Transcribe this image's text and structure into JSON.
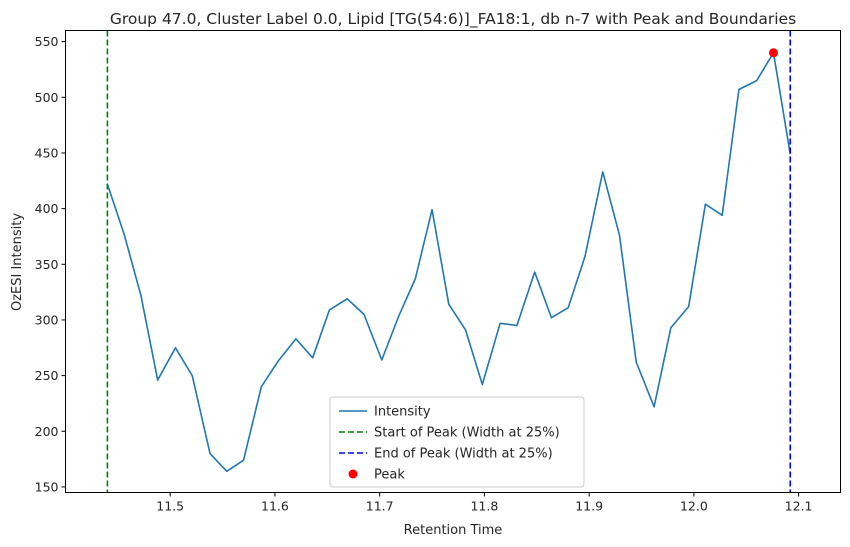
{
  "chart_data": {
    "type": "line",
    "title": "Group 47.0, Cluster Label 0.0, Lipid [TG(54:6)]_FA18:1, db n-7 with Peak and Boundaries",
    "xlabel": "Retention Time",
    "ylabel": "OzESI Intensity",
    "xlim": [
      11.4,
      12.14
    ],
    "ylim": [
      145,
      560
    ],
    "xticks": [
      11.5,
      11.6,
      11.7,
      11.8,
      11.9,
      12.0,
      12.1
    ],
    "xtick_labels": [
      "11.5",
      "11.6",
      "11.7",
      "11.8",
      "11.9",
      "12.0",
      "12.1"
    ],
    "yticks": [
      150,
      200,
      250,
      300,
      350,
      400,
      450,
      500,
      550
    ],
    "ytick_labels": [
      "150",
      "200",
      "250",
      "300",
      "350",
      "400",
      "450",
      "500",
      "550"
    ],
    "grid": false,
    "legend_position": "lower-center",
    "series": [
      {
        "name": "Intensity",
        "color": "#1f77b4",
        "x": [
          11.44,
          11.456,
          11.472,
          11.488,
          11.505,
          11.521,
          11.538,
          11.554,
          11.57,
          11.587,
          11.603,
          11.62,
          11.636,
          11.652,
          11.669,
          11.685,
          11.702,
          11.718,
          11.734,
          11.75,
          11.766,
          11.782,
          11.798,
          11.815,
          11.831,
          11.848,
          11.864,
          11.88,
          11.896,
          11.913,
          11.929,
          11.945,
          11.962,
          11.978,
          11.995,
          12.011,
          12.027,
          12.043,
          12.06,
          12.076,
          12.092
        ],
        "y": [
          422,
          377,
          322,
          246,
          275,
          250,
          180,
          164,
          174,
          240,
          263,
          283,
          266,
          309,
          319,
          305,
          264,
          303,
          337,
          399,
          314,
          291,
          242,
          297,
          295,
          343,
          302,
          311,
          357,
          433,
          376,
          262,
          222,
          293,
          312,
          404,
          394,
          507,
          515,
          540,
          449
        ]
      },
      {
        "name": "Start of Peak (Width at 25%)",
        "color": "#008000",
        "style": "dashed-vertical",
        "x": 11.44
      },
      {
        "name": "End of Peak (Width at 25%)",
        "color": "#0000ff",
        "style": "dashed-vertical",
        "x": 12.092
      },
      {
        "name": "Peak",
        "color": "#ff0000",
        "style": "marker",
        "x": 12.076,
        "y": 540
      }
    ]
  }
}
